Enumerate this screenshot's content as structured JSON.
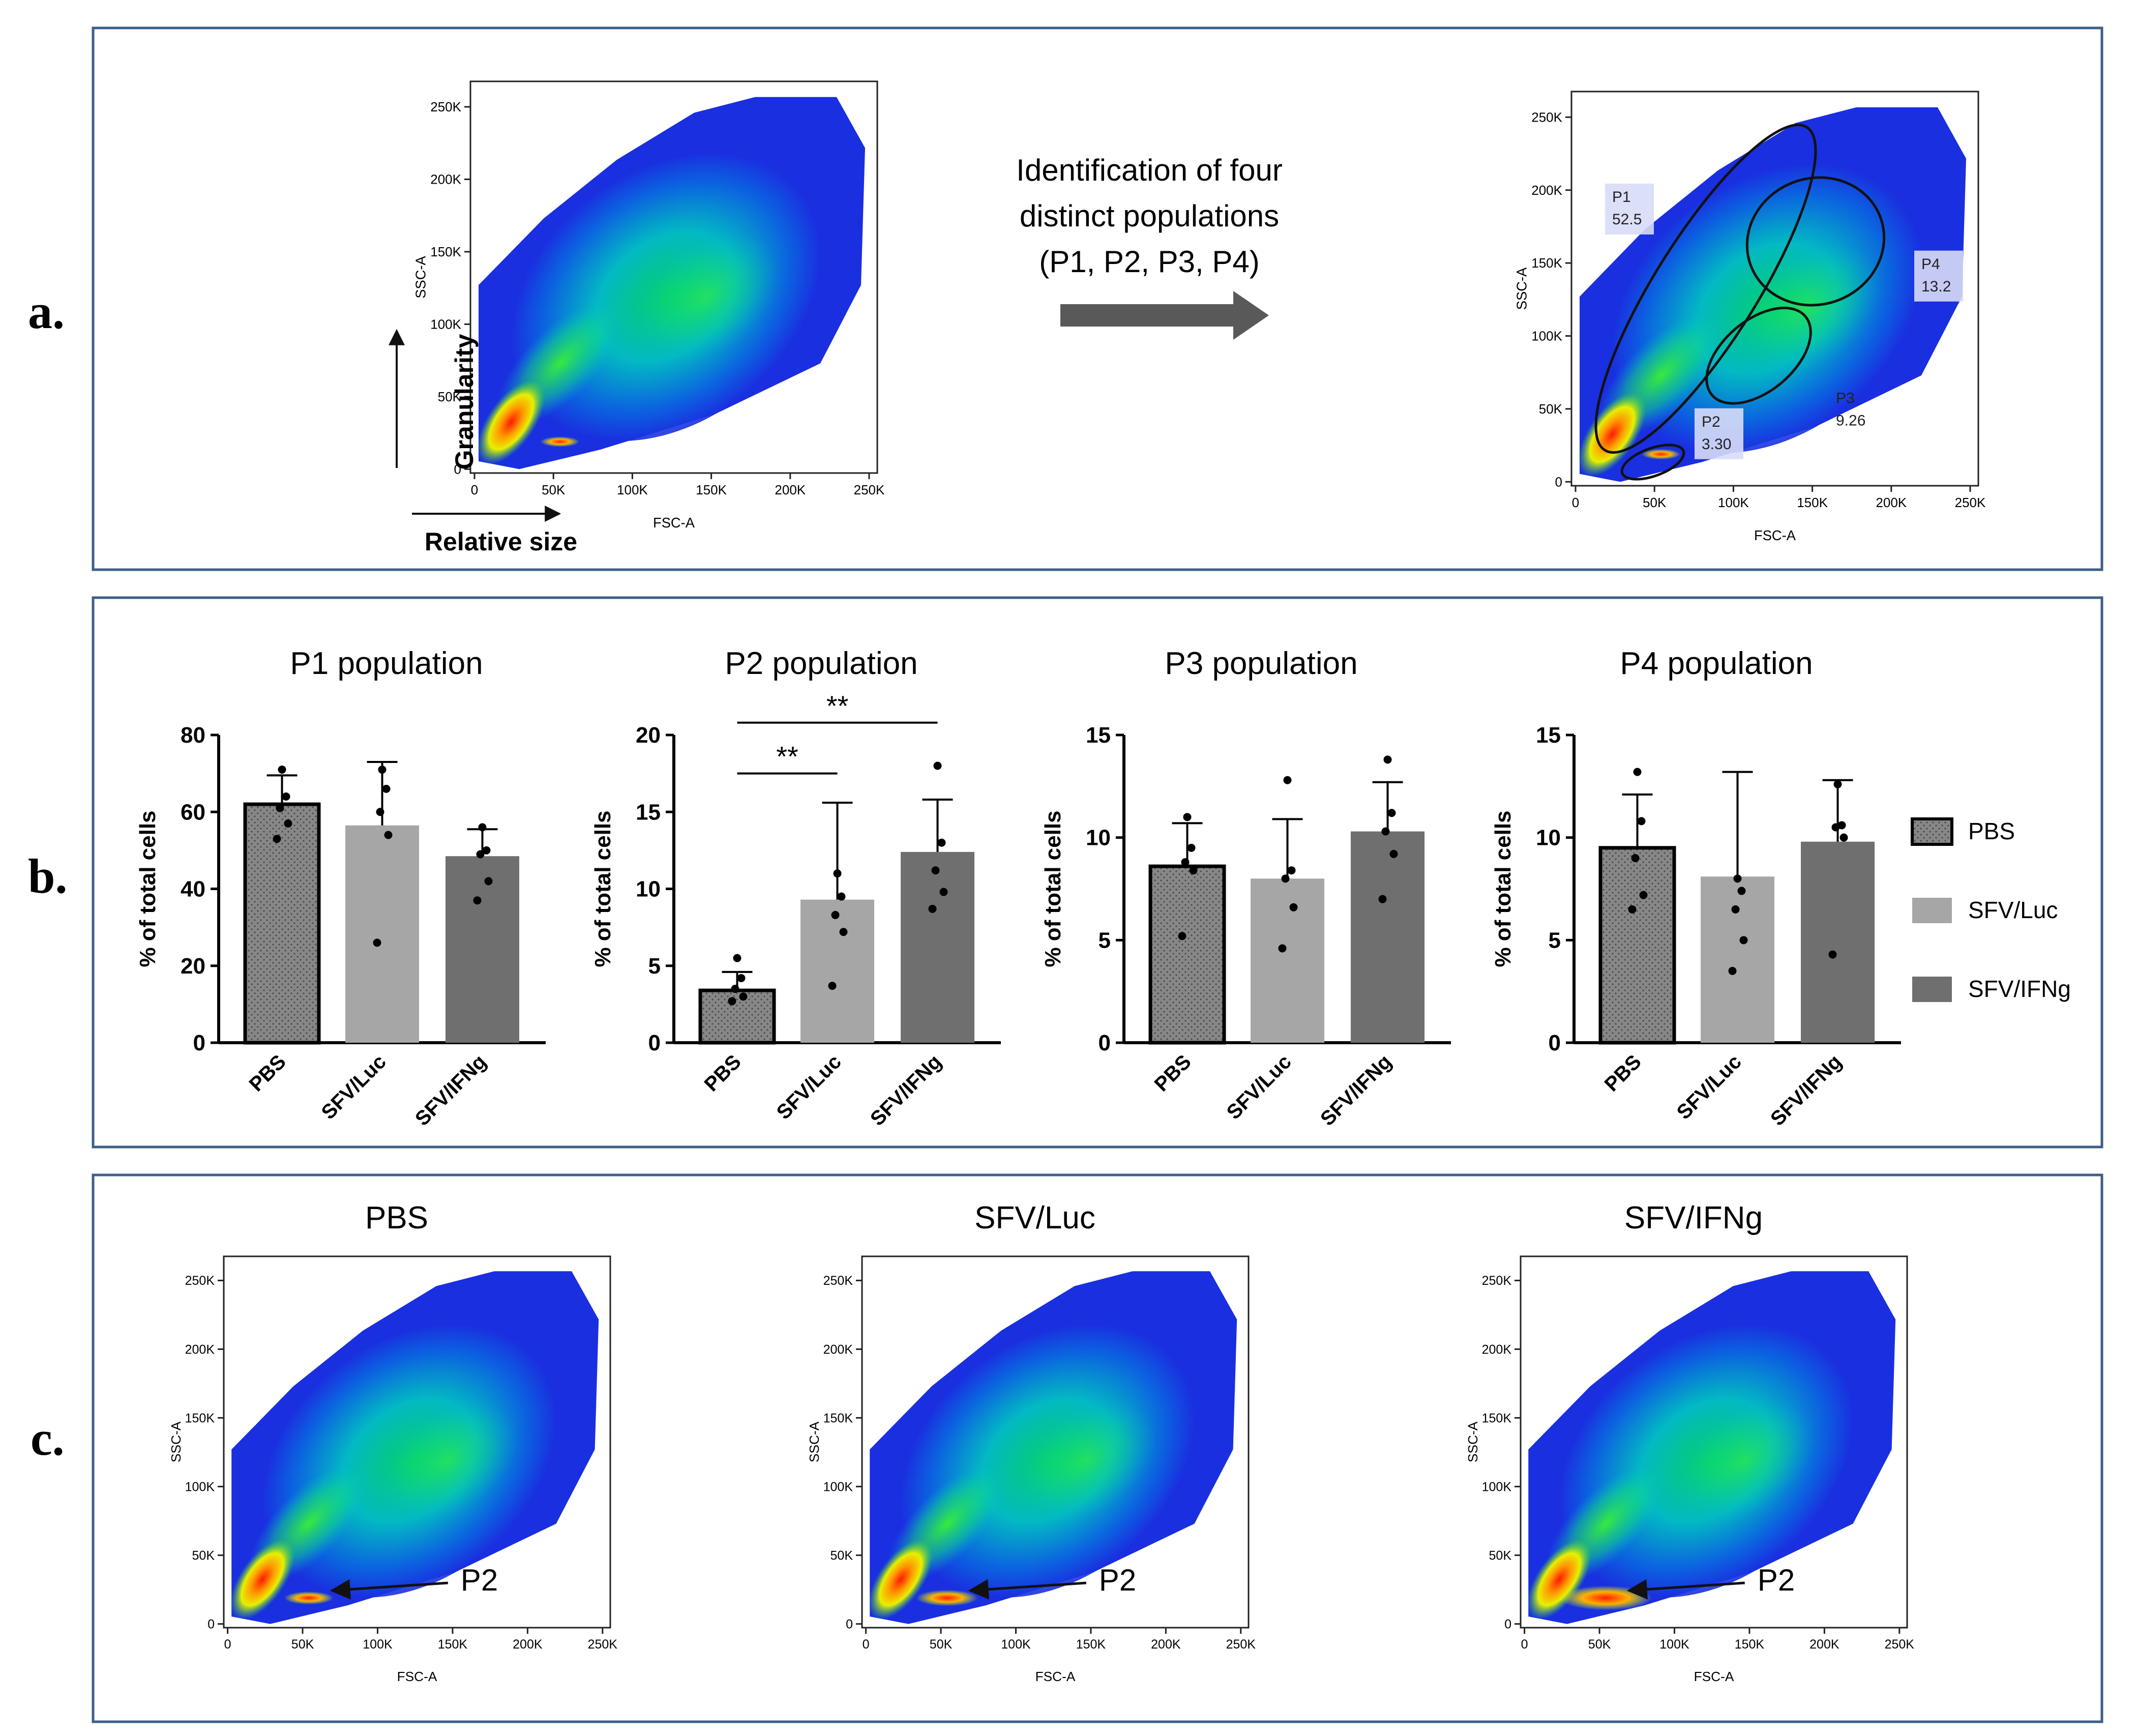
{
  "labels": {
    "a": "a.",
    "b": "b.",
    "c": "c."
  },
  "panel_a": {
    "arrow_text": [
      "Identification of four",
      "distinct populations",
      "(P1, P2, P3, P4)"
    ],
    "granularity": "Granularity",
    "relative_size": "Relative size",
    "left_plot": {
      "x_label": "FSC-A",
      "y_label": "SSC-A",
      "x_ticks": [
        "0",
        "50K",
        "100K",
        "150K",
        "200K",
        "250K"
      ],
      "y_ticks": [
        "0",
        "50K",
        "100K",
        "150K",
        "200K",
        "250K"
      ]
    },
    "gated_plot": {
      "x_label": "FSC-A",
      "y_label": "SSC-A",
      "x_ticks": [
        "0",
        "50K",
        "100K",
        "150K",
        "200K",
        "250K"
      ],
      "y_ticks": [
        "0",
        "50K",
        "100K",
        "150K",
        "200K",
        "250K"
      ],
      "gates": [
        {
          "name": "P1",
          "value": "52.5"
        },
        {
          "name": "P2",
          "value": "3.30"
        },
        {
          "name": "P3",
          "value": "9.26"
        },
        {
          "name": "P4",
          "value": "13.2"
        }
      ]
    }
  },
  "legend": {
    "items": [
      {
        "label": "PBS",
        "color": "#878787"
      },
      {
        "label": "SFV/Luc",
        "color": "#a6a6a6"
      },
      {
        "label": "SFV/IFNg",
        "color": "#6f6f6f"
      }
    ]
  },
  "panel_c": {
    "plots": [
      {
        "title": "PBS",
        "x_label": "FSC-A",
        "y_label": "SSC-A",
        "arrow_label": "P2"
      },
      {
        "title": "SFV/Luc",
        "x_label": "FSC-A",
        "y_label": "SSC-A",
        "arrow_label": "P2"
      },
      {
        "title": "SFV/IFNg",
        "x_label": "FSC-A",
        "y_label": "SSC-A",
        "arrow_label": "P2"
      }
    ],
    "x_ticks": [
      "0",
      "50K",
      "100K",
      "150K",
      "200K",
      "250K"
    ],
    "y_ticks": [
      "0",
      "50K",
      "100K",
      "150K",
      "200K",
      "250K"
    ]
  },
  "chart_data": [
    {
      "type": "bar",
      "title": "P1 population",
      "categories": [
        "PBS",
        "SFV/Luc",
        "SFV/IFNg"
      ],
      "values": [
        62,
        56.5,
        48.5
      ],
      "errors": [
        7.5,
        16.5,
        7
      ],
      "points": [
        [
          53,
          57,
          61,
          64,
          71
        ],
        [
          26,
          54,
          60,
          66,
          71
        ],
        [
          37,
          42,
          49,
          50,
          56
        ]
      ],
      "ylabel": "% of total cells",
      "ylim": [
        0,
        80
      ],
      "yticks": [
        "0",
        "20",
        "40",
        "60",
        "80"
      ]
    },
    {
      "type": "bar",
      "title": "P2 population",
      "categories": [
        "PBS",
        "SFV/Luc",
        "SFV/IFNg"
      ],
      "values": [
        3.4,
        9.3,
        12.4
      ],
      "errors": [
        1.2,
        6.3,
        3.4
      ],
      "points": [
        [
          2.7,
          3.0,
          3.5,
          4.2,
          5.5
        ],
        [
          3.7,
          7.2,
          8.3,
          9.5,
          11.0
        ],
        [
          8.7,
          9.8,
          11.2,
          13.0,
          18.0
        ]
      ],
      "ylabel": "% of total cells",
      "ylim": [
        0,
        20
      ],
      "yticks": [
        "0",
        "5",
        "10",
        "15",
        "20"
      ],
      "significance": [
        {
          "from": 0,
          "to": 1,
          "label": "**",
          "y": 17.5
        },
        {
          "from": 0,
          "to": 2,
          "label": "**",
          "y": 20.8
        }
      ]
    },
    {
      "type": "bar",
      "title": "P3 population",
      "categories": [
        "PBS",
        "SFV/Luc",
        "SFV/IFNg"
      ],
      "values": [
        8.6,
        8.0,
        10.3
      ],
      "errors": [
        2.1,
        2.9,
        2.4
      ],
      "points": [
        [
          5.2,
          8.4,
          8.8,
          9.5,
          11.0
        ],
        [
          4.6,
          6.6,
          8.0,
          8.4,
          12.8
        ],
        [
          7.0,
          9.2,
          10.3,
          11.2,
          13.8
        ]
      ],
      "ylabel": "% of total cells",
      "ylim": [
        0,
        15
      ],
      "yticks": [
        "0",
        "5",
        "10",
        "15"
      ]
    },
    {
      "type": "bar",
      "title": "P4 population",
      "categories": [
        "PBS",
        "SFV/Luc",
        "SFV/IFNg"
      ],
      "values": [
        9.5,
        8.1,
        9.8
      ],
      "errors": [
        2.6,
        5.1,
        3.0
      ],
      "points": [
        [
          6.5,
          7.2,
          9.0,
          10.8,
          13.2
        ],
        [
          3.5,
          5.0,
          6.5,
          7.4,
          8.0
        ],
        [
          4.3,
          10.0,
          10.5,
          10.6,
          12.6
        ]
      ],
      "ylabel": "% of total cells",
      "ylim": [
        0,
        15
      ],
      "yticks": [
        "0",
        "5",
        "10",
        "15"
      ]
    }
  ]
}
